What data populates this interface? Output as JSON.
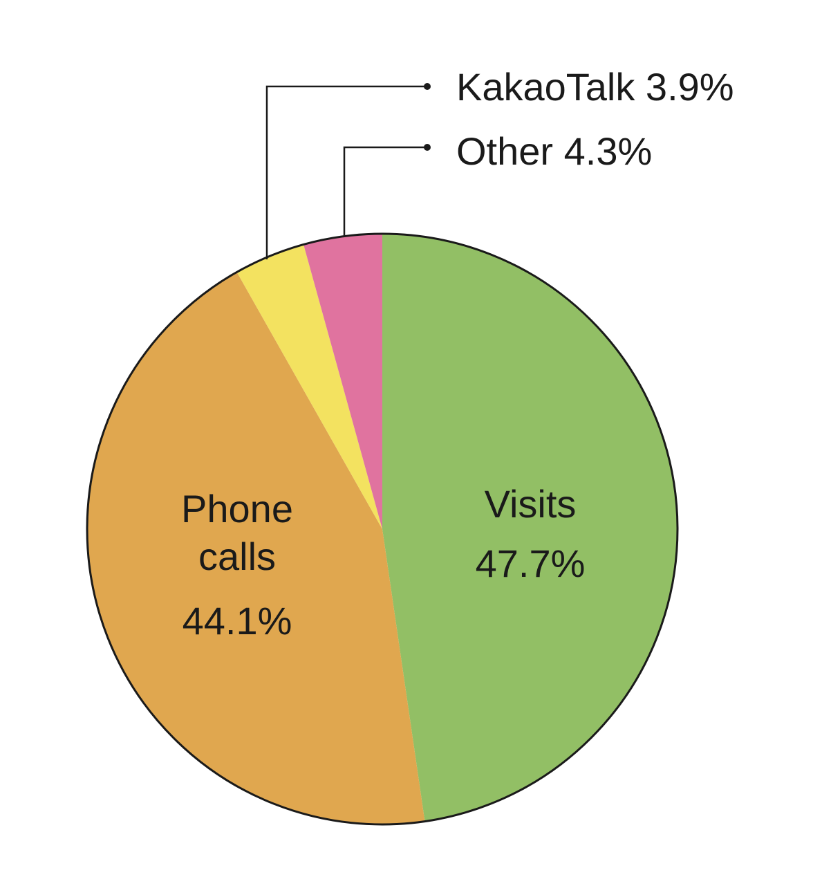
{
  "chart_data": {
    "type": "pie",
    "slices": [
      {
        "id": "visits",
        "label_lines": [
          "Visits"
        ],
        "value_text": "47.7%",
        "value": 47.7,
        "color": "#92bf65"
      },
      {
        "id": "phone",
        "label_lines": [
          "Phone",
          "calls"
        ],
        "value_text": "44.1%",
        "value": 44.1,
        "color": "#e0a74f"
      },
      {
        "id": "kakao",
        "label": "KakaoTalk 3.9%",
        "value": 3.9,
        "color": "#f3e260"
      },
      {
        "id": "other",
        "label": "Other 4.3%",
        "value": 4.3,
        "color": "#e0739f"
      }
    ],
    "start": "12 o'clock",
    "direction": "clockwise",
    "border_color": "#1a1a1a",
    "leader_color": "#1a1a1a"
  }
}
